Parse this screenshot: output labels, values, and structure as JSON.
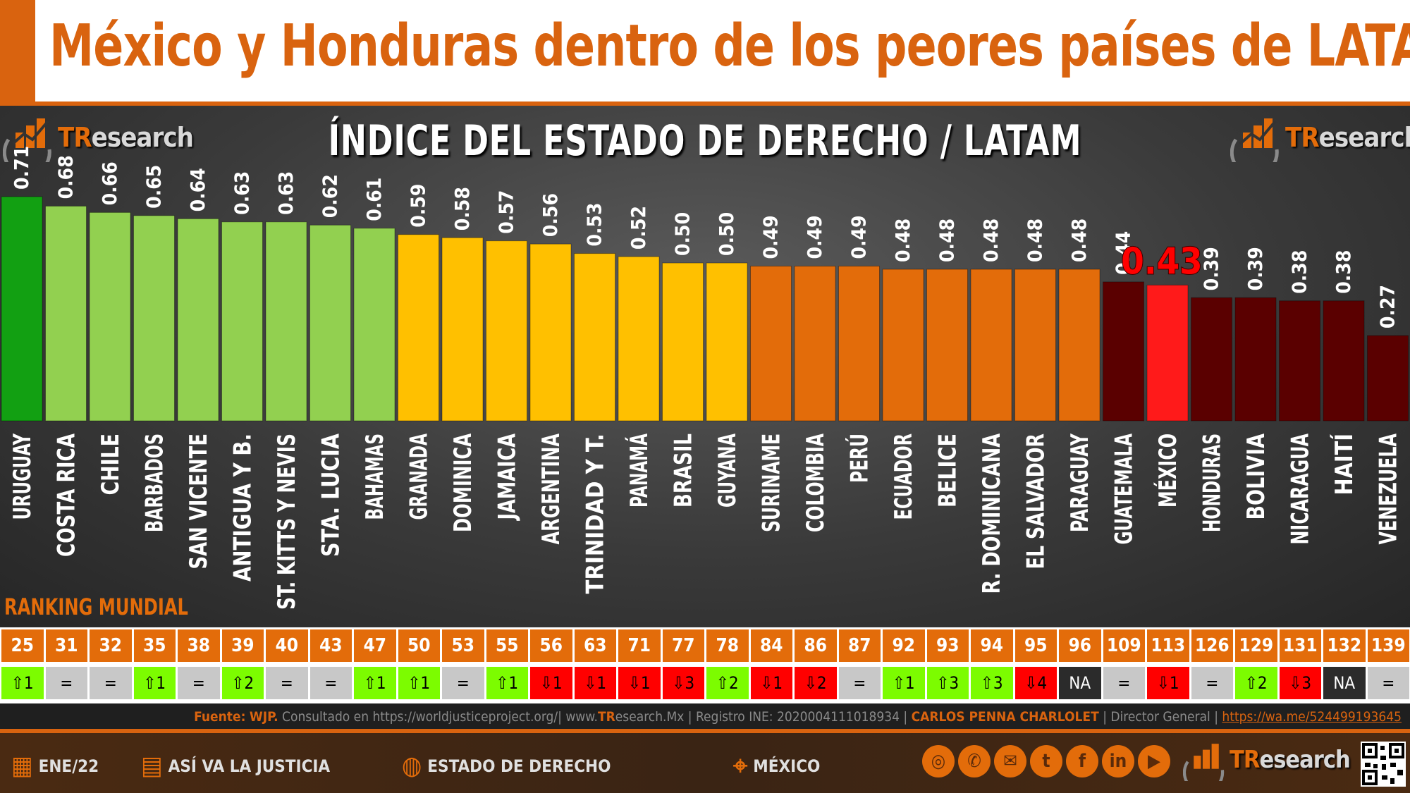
{
  "header": {
    "title": "México y Honduras dentro de los peores países de LATAM"
  },
  "logo": {
    "part1": "TR",
    "part2": "esearch"
  },
  "chart_data": {
    "type": "bar",
    "title": "ÍNDICE DEL ESTADO DE DERECHO / LATAM",
    "categories": [
      "URUGUAY",
      "COSTA RICA",
      "CHILE",
      "BARBADOS",
      "SAN VICENTE",
      "ANTIGUA Y B.",
      "ST. KITTS Y NEVIS",
      "STA. LUCIA",
      "BAHAMAS",
      "GRANADA",
      "DOMINICA",
      "JAMAICA",
      "ARGENTINA",
      "TRINIDAD Y T.",
      "PANAMÁ",
      "BRASIL",
      "GUYANA",
      "SURINAME",
      "COLOMBIA",
      "PERÚ",
      "ECUADOR",
      "BELICE",
      "R. DOMINICANA",
      "EL SALVADOR",
      "PARAGUAY",
      "GUATEMALA",
      "MÉXICO",
      "HONDURAS",
      "BOLIVIA",
      "NICARAGUA",
      "HAITÍ",
      "VENEZUELA"
    ],
    "values": [
      0.71,
      0.68,
      0.66,
      0.65,
      0.64,
      0.63,
      0.63,
      0.62,
      0.61,
      0.59,
      0.58,
      0.57,
      0.56,
      0.53,
      0.52,
      0.5,
      0.5,
      0.49,
      0.49,
      0.49,
      0.48,
      0.48,
      0.48,
      0.48,
      0.48,
      0.44,
      0.43,
      0.39,
      0.39,
      0.38,
      0.38,
      0.27
    ],
    "labels": [
      "0.71",
      "0.68",
      "0.66",
      "0.65",
      "0.64",
      "0.63",
      "0.63",
      "0.62",
      "0.61",
      "0.59",
      "0.58",
      "0.57",
      "0.56",
      "0.53",
      "0.52",
      "0.50",
      "0.50",
      "0.49",
      "0.49",
      "0.49",
      "0.48",
      "0.48",
      "0.48",
      "0.48",
      "0.48",
      "0.44",
      "0.43",
      "0.39",
      "0.39",
      "0.38",
      "0.38",
      "0.27"
    ],
    "highlight": "MÉXICO",
    "colors": {
      "top": "#12a012",
      "green": "#92d050",
      "yellow": "#ffc000",
      "orange": "#e36c0a",
      "darkred": "#5a0000",
      "highlight": "#ff1a1a"
    },
    "color_groups": [
      "top",
      "green",
      "green",
      "green",
      "green",
      "green",
      "green",
      "green",
      "green",
      "yellow",
      "yellow",
      "yellow",
      "yellow",
      "yellow",
      "yellow",
      "yellow",
      "yellow",
      "orange",
      "orange",
      "orange",
      "orange",
      "orange",
      "orange",
      "orange",
      "orange",
      "darkred",
      "highlight",
      "darkred",
      "darkred",
      "darkred",
      "darkred",
      "darkred"
    ]
  },
  "ranking": {
    "label": "RANKING MUNDIAL",
    "ranks": [
      "25",
      "31",
      "32",
      "35",
      "38",
      "39",
      "40",
      "43",
      "47",
      "50",
      "53",
      "55",
      "56",
      "63",
      "71",
      "77",
      "78",
      "84",
      "86",
      "87",
      "92",
      "93",
      "94",
      "95",
      "96",
      "109",
      "113",
      "126",
      "129",
      "131",
      "132",
      "139"
    ],
    "changes": [
      "⇧1",
      "=",
      "=",
      "⇧1",
      "=",
      "⇧2",
      "=",
      "=",
      "⇧1",
      "⇧1",
      "=",
      "⇧1",
      "⇩1",
      "⇩1",
      "⇩1",
      "⇩3",
      "⇧2",
      "⇩1",
      "⇩2",
      "=",
      "⇧1",
      "⇧3",
      "⇧3",
      "⇩4",
      "NA",
      "=",
      "⇩1",
      "=",
      "⇧2",
      "⇩3",
      "NA",
      "="
    ],
    "change_colors": {
      "up": "#7cfc00",
      "down": "#ff0000",
      "same": "#c8c8c8",
      "na": "#2b2b2b"
    }
  },
  "source": {
    "label": "Fuente:",
    "org": "WJP.",
    "text": "Consultado en https://worldjusticeproject.org/| www.",
    "site_bold": "TR",
    "site_rest": "esearch.Mx | Registro INE: 2020004111018934  |",
    "author": "CARLOS PENNA CHARLOLET",
    "role": "| Director General |",
    "link": "https://wa.me/524499193645"
  },
  "footer": {
    "date": "ENE/22",
    "series": "ASÍ VA LA JUSTICIA",
    "topic": "ESTADO DE DERECHO",
    "country": "MÉXICO",
    "social_icons": [
      "globe-icon",
      "phone-icon",
      "mail-icon",
      "twitter-icon",
      "facebook-icon",
      "linkedin-icon",
      "youtube-icon"
    ]
  }
}
